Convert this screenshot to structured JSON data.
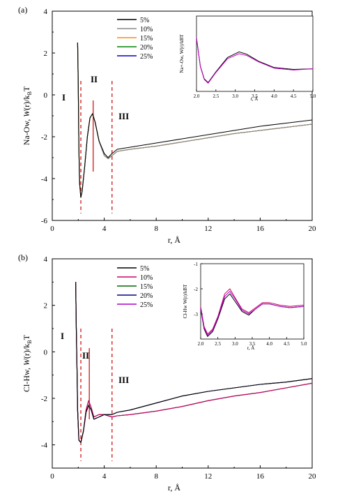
{
  "figure": {
    "panels": [
      {
        "label": "(a)",
        "xlabel": "r, Å",
        "ylabel_parts": {
          "pre": "Na-Ow, ",
          "w": "W",
          "mid": "(r)/k",
          "sub": "B",
          "post": "T"
        },
        "xticks": [
          "0",
          "4",
          "8",
          "12",
          "16",
          "20"
        ],
        "yticks": [
          "-6",
          "-4",
          "-2",
          "0",
          "2",
          "4"
        ],
        "regions": [
          "I",
          "II",
          "III"
        ],
        "legend": [
          "5%",
          "10%",
          "15%",
          "20%",
          "25%"
        ],
        "inset": {
          "xlabel": "r, Å",
          "ylabel": "Na+-Ow, W(r)/kBT",
          "xticks": [
            "2.0",
            "2.5",
            "3.0",
            "3.5",
            "4.0",
            "4.5",
            "5.0"
          ]
        }
      },
      {
        "label": "(b)",
        "xlabel": "r, Å",
        "ylabel_parts": {
          "pre": "Cl-Hw, ",
          "w": "W",
          "mid": "(r)/k",
          "sub": "B",
          "post": "T"
        },
        "xticks": [
          "0",
          "4",
          "8",
          "12",
          "16",
          "20"
        ],
        "yticks": [
          "-4",
          "-2",
          "0",
          "2",
          "4"
        ],
        "regions": [
          "I",
          "II",
          "III"
        ],
        "legend": [
          "5%",
          "10%",
          "15%",
          "20%",
          "25%"
        ],
        "inset": {
          "xlabel": "r, Å",
          "ylabel": "Cl-Hw W(r)/kBT",
          "xticks": [
            "2.0",
            "2.5",
            "3.0",
            "3.5",
            "4.0",
            "4.5",
            "5.0"
          ],
          "yticks": [
            "-1",
            "-2",
            "-3"
          ]
        }
      }
    ]
  },
  "chart_data": [
    {
      "type": "line",
      "xlim": [
        0,
        20
      ],
      "ylim": [
        -6,
        4
      ],
      "colors": [
        "#000000",
        "#888888",
        "#ff8c00",
        "#008000",
        "#0000cc"
      ],
      "dividers_x": [
        2.2,
        4.6
      ],
      "peak_marker_x": 3.15,
      "series": [
        {
          "name": "5%",
          "x": [
            1.95,
            2.0,
            2.05,
            2.1,
            2.2,
            2.3,
            2.5,
            2.7,
            2.9,
            3.1,
            3.3,
            3.6,
            4.0,
            4.3,
            4.6,
            5.0,
            6.0,
            8.0,
            10.0,
            12.0,
            14.0,
            16.0,
            18.0,
            20.0
          ],
          "y": [
            2.5,
            0.5,
            -2.5,
            -4.2,
            -4.9,
            -4.6,
            -3.4,
            -2.0,
            -1.1,
            -0.9,
            -1.3,
            -2.2,
            -2.8,
            -3.0,
            -2.8,
            -2.6,
            -2.5,
            -2.3,
            -2.1,
            -1.9,
            -1.7,
            -1.5,
            -1.35,
            -1.2
          ]
        },
        {
          "name": "10%",
          "x": [
            1.95,
            2.0,
            2.05,
            2.1,
            2.2,
            2.3,
            2.5,
            2.7,
            2.9,
            3.1,
            3.3,
            3.6,
            4.0,
            4.3,
            4.6,
            5.0,
            6.0,
            8.0,
            10.0,
            12.0,
            14.0,
            16.0,
            18.0,
            20.0
          ],
          "y": [
            2.5,
            0.5,
            -2.5,
            -4.2,
            -4.9,
            -4.6,
            -3.4,
            -2.0,
            -1.1,
            -0.9,
            -1.3,
            -2.2,
            -2.9,
            -3.05,
            -2.9,
            -2.7,
            -2.6,
            -2.45,
            -2.25,
            -2.05,
            -1.85,
            -1.7,
            -1.55,
            -1.4
          ]
        },
        {
          "name": "15%",
          "x": [
            1.95,
            2.0,
            2.05,
            2.1,
            2.2,
            2.3,
            2.5,
            2.7,
            2.9,
            3.1,
            3.3,
            3.6,
            4.0,
            4.3,
            4.6,
            5.0,
            6.0,
            8.0,
            10.0,
            12.0,
            14.0,
            16.0,
            18.0,
            20.0
          ],
          "y": [
            2.5,
            0.5,
            -2.5,
            -4.2,
            -4.9,
            -4.6,
            -3.4,
            -2.0,
            -1.1,
            -0.9,
            -1.3,
            -2.2,
            -2.9,
            -3.05,
            -2.9,
            -2.7,
            -2.6,
            -2.45,
            -2.25,
            -2.05,
            -1.85,
            -1.7,
            -1.55,
            -1.4
          ]
        },
        {
          "name": "20%",
          "x": [
            1.95,
            2.0,
            2.05,
            2.1,
            2.2,
            2.3,
            2.5,
            2.7,
            2.9,
            3.1,
            3.3,
            3.6,
            4.0,
            4.3,
            4.6,
            5.0,
            6.0,
            8.0,
            10.0,
            12.0,
            14.0,
            16.0,
            18.0,
            20.0
          ],
          "y": [
            2.5,
            0.5,
            -2.5,
            -4.2,
            -4.9,
            -4.6,
            -3.4,
            -2.0,
            -1.1,
            -0.9,
            -1.3,
            -2.2,
            -2.9,
            -3.05,
            -2.9,
            -2.7,
            -2.6,
            -2.45,
            -2.25,
            -2.05,
            -1.85,
            -1.7,
            -1.55,
            -1.4
          ]
        },
        {
          "name": "25%",
          "x": [
            1.95,
            2.0,
            2.05,
            2.1,
            2.2,
            2.3,
            2.5,
            2.7,
            2.9,
            3.1,
            3.3,
            3.6,
            4.0,
            4.3,
            4.6,
            5.0,
            6.0,
            8.0,
            10.0,
            12.0,
            14.0,
            16.0,
            18.0,
            20.0
          ],
          "y": [
            2.5,
            0.5,
            -2.5,
            -4.2,
            -4.9,
            -4.6,
            -3.4,
            -2.0,
            -1.1,
            -0.9,
            -1.3,
            -2.2,
            -2.9,
            -3.05,
            -2.9,
            -2.7,
            -2.6,
            -2.45,
            -2.25,
            -2.05,
            -1.85,
            -1.7,
            -1.55,
            -1.4
          ]
        }
      ],
      "inset": {
        "xlim": [
          2.0,
          5.0
        ],
        "ylim": [
          -7,
          5
        ],
        "series": [
          {
            "name": "5%",
            "color": "#000000",
            "x": [
              2.0,
              2.1,
              2.2,
              2.3,
              2.5,
              2.8,
              3.1,
              3.3,
              3.6,
              4.0,
              4.5,
              5.0
            ],
            "y": [
              1.5,
              -3.0,
              -5.0,
              -5.6,
              -3.9,
              -1.6,
              -0.7,
              -1.1,
              -2.2,
              -3.2,
              -3.5,
              -3.4
            ]
          },
          {
            "name": "25%",
            "color": "#cc00cc",
            "x": [
              2.0,
              2.1,
              2.2,
              2.3,
              2.5,
              2.8,
              3.1,
              3.3,
              3.6,
              4.0,
              4.5,
              5.0
            ],
            "y": [
              1.5,
              -3.1,
              -5.1,
              -5.7,
              -4.0,
              -1.8,
              -1.0,
              -1.3,
              -2.3,
              -3.3,
              -3.6,
              -3.4
            ]
          }
        ]
      }
    },
    {
      "type": "line",
      "xlim": [
        0,
        20
      ],
      "ylim": [
        -5,
        4
      ],
      "colors": [
        "#000000",
        "#cc0066",
        "#006600",
        "#000080",
        "#aa00cc"
      ],
      "dividers_x": [
        2.2,
        4.6
      ],
      "peak_marker_x": 2.85,
      "series": [
        {
          "name": "5%",
          "x": [
            1.8,
            1.85,
            1.9,
            1.95,
            2.05,
            2.2,
            2.4,
            2.6,
            2.8,
            3.0,
            3.2,
            3.6,
            4.0,
            4.6,
            5.0,
            6.0,
            8.0,
            10.0,
            12.0,
            14.0,
            16.0,
            18.0,
            20.0
          ],
          "y": [
            3.0,
            1.0,
            -0.5,
            -2.5,
            -3.8,
            -3.9,
            -3.4,
            -2.6,
            -2.3,
            -2.5,
            -2.9,
            -2.8,
            -2.7,
            -2.7,
            -2.6,
            -2.5,
            -2.2,
            -1.9,
            -1.7,
            -1.55,
            -1.4,
            -1.3,
            -1.15
          ]
        },
        {
          "name": "10%",
          "x": [
            1.8,
            1.85,
            1.9,
            1.95,
            2.05,
            2.2,
            2.4,
            2.6,
            2.8,
            3.0,
            3.2,
            3.6,
            4.0,
            4.6,
            5.0,
            6.0,
            8.0,
            10.0,
            12.0,
            14.0,
            16.0,
            18.0,
            20.0
          ],
          "y": [
            3.0,
            1.0,
            -0.5,
            -2.5,
            -3.8,
            -3.9,
            -3.4,
            -2.5,
            -2.1,
            -2.4,
            -2.8,
            -2.7,
            -2.7,
            -2.8,
            -2.75,
            -2.7,
            -2.55,
            -2.35,
            -2.1,
            -1.9,
            -1.75,
            -1.55,
            -1.35
          ]
        },
        {
          "name": "15%",
          "x": [
            1.8,
            1.85,
            1.9,
            1.95,
            2.05,
            2.2,
            2.4,
            2.6,
            2.8,
            3.0,
            3.2,
            3.6,
            4.0,
            4.6,
            5.0,
            6.0,
            8.0,
            10.0,
            12.0,
            14.0,
            16.0,
            18.0,
            20.0
          ],
          "y": [
            3.0,
            1.0,
            -0.5,
            -2.5,
            -3.8,
            -3.9,
            -3.4,
            -2.5,
            -2.1,
            -2.4,
            -2.8,
            -2.7,
            -2.7,
            -2.8,
            -2.75,
            -2.7,
            -2.55,
            -2.35,
            -2.1,
            -1.9,
            -1.75,
            -1.55,
            -1.35
          ]
        },
        {
          "name": "20%",
          "x": [
            1.8,
            1.85,
            1.9,
            1.95,
            2.05,
            2.2,
            2.4,
            2.6,
            2.8,
            3.0,
            3.2,
            3.6,
            4.0,
            4.6,
            5.0,
            6.0,
            8.0,
            10.0,
            12.0,
            14.0,
            16.0,
            18.0,
            20.0
          ],
          "y": [
            3.0,
            1.0,
            -0.5,
            -2.5,
            -3.8,
            -3.9,
            -3.4,
            -2.6,
            -2.3,
            -2.5,
            -2.9,
            -2.8,
            -2.7,
            -2.7,
            -2.6,
            -2.5,
            -2.2,
            -1.9,
            -1.7,
            -1.55,
            -1.4,
            -1.3,
            -1.15
          ]
        },
        {
          "name": "25%",
          "x": [
            1.8,
            1.85,
            1.9,
            1.95,
            2.05,
            2.2,
            2.4,
            2.6,
            2.8,
            3.0,
            3.2,
            3.6,
            4.0,
            4.6,
            5.0,
            6.0,
            8.0,
            10.0,
            12.0,
            14.0,
            16.0,
            18.0,
            20.0
          ],
          "y": [
            3.0,
            1.0,
            -0.5,
            -2.5,
            -3.8,
            -3.9,
            -3.4,
            -2.5,
            -2.1,
            -2.4,
            -2.8,
            -2.7,
            -2.7,
            -2.8,
            -2.75,
            -2.7,
            -2.55,
            -2.35,
            -2.1,
            -1.9,
            -1.75,
            -1.55,
            -1.35
          ]
        }
      ],
      "inset": {
        "xlim": [
          2.0,
          5.0
        ],
        "ylim": [
          -4,
          -1
        ],
        "series": [
          {
            "name": "5%",
            "color": "#000000",
            "x": [
              2.0,
              2.1,
              2.2,
              2.35,
              2.5,
              2.7,
              2.85,
              3.0,
              3.2,
              3.4,
              3.6,
              3.8,
              4.0,
              4.3,
              4.6,
              5.0
            ],
            "y": [
              -2.8,
              -3.6,
              -3.9,
              -3.7,
              -3.2,
              -2.4,
              -2.2,
              -2.5,
              -2.9,
              -3.05,
              -2.8,
              -2.6,
              -2.6,
              -2.7,
              -2.75,
              -2.7
            ]
          },
          {
            "name": "10%",
            "color": "#cc0066",
            "x": [
              2.0,
              2.1,
              2.2,
              2.35,
              2.5,
              2.7,
              2.85,
              3.0,
              3.2,
              3.4,
              3.6,
              3.8,
              4.0,
              4.3,
              4.6,
              5.0
            ],
            "y": [
              -2.7,
              -3.5,
              -3.8,
              -3.6,
              -3.1,
              -2.2,
              -2.0,
              -2.35,
              -2.8,
              -2.95,
              -2.75,
              -2.55,
              -2.55,
              -2.65,
              -2.7,
              -2.65
            ]
          },
          {
            "name": "25%",
            "color": "#aa00cc",
            "x": [
              2.0,
              2.1,
              2.2,
              2.35,
              2.5,
              2.7,
              2.85,
              3.0,
              3.2,
              3.4,
              3.6,
              3.8,
              4.0,
              4.3,
              4.6,
              5.0
            ],
            "y": [
              -2.75,
              -3.55,
              -3.85,
              -3.65,
              -3.15,
              -2.3,
              -2.1,
              -2.4,
              -2.85,
              -3.0,
              -2.8,
              -2.6,
              -2.6,
              -2.7,
              -2.75,
              -2.7
            ]
          }
        ]
      }
    }
  ]
}
